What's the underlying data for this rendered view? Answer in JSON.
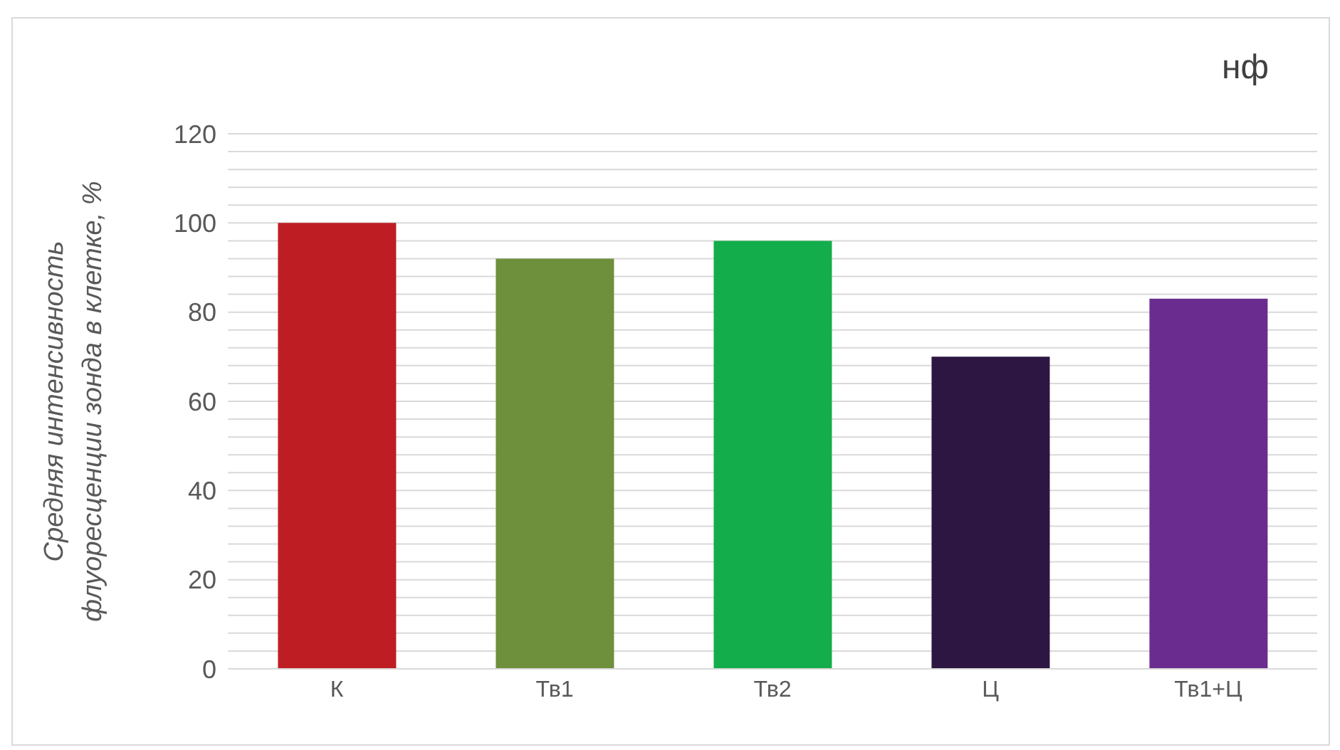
{
  "chart_data": {
    "type": "bar",
    "title": "нф",
    "ylabel": "Средняя интенсивность флуоресценции зонда в клетке, %",
    "categories": [
      "К",
      "Тв1",
      "Тв2",
      "Ц",
      "Тв1+Ц"
    ],
    "values": [
      100,
      92,
      96,
      70,
      83
    ],
    "colors": [
      "#be1e23",
      "#6e8f3b",
      "#14ad4b",
      "#2d1641",
      "#6a2d8f"
    ],
    "ylim": [
      0,
      120
    ],
    "yticks": [
      0,
      {
        "value": 4,
        "label": null
      },
      {
        "value": 8,
        "label": null
      },
      {
        "value": 12,
        "label": null
      },
      {
        "value": 16,
        "label": null
      },
      20,
      {
        "value": 24,
        "label": null
      },
      {
        "value": 28,
        "label": null
      },
      {
        "value": 32,
        "label": null
      },
      {
        "value": 36,
        "label": null
      },
      40,
      {
        "value": 44,
        "label": null
      },
      {
        "value": 48,
        "label": null
      },
      {
        "value": 52,
        "label": null
      },
      {
        "value": 56,
        "label": null
      },
      60,
      {
        "value": 64,
        "label": null
      },
      {
        "value": 68,
        "label": null
      },
      {
        "value": 72,
        "label": null
      },
      {
        "value": 76,
        "label": null
      },
      80,
      {
        "value": 84,
        "label": null
      },
      {
        "value": 88,
        "label": null
      },
      {
        "value": 92,
        "label": null
      },
      {
        "value": 96,
        "label": null
      },
      100,
      {
        "value": 104,
        "label": null
      },
      {
        "value": 108,
        "label": null
      },
      {
        "value": 112,
        "label": null
      },
      {
        "value": 116,
        "label": null
      },
      120
    ],
    "grid": "y"
  }
}
